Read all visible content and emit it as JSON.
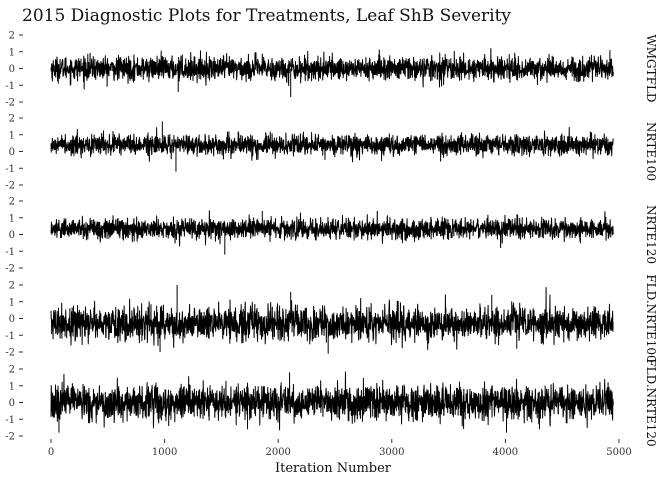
{
  "chart_data": {
    "type": "line",
    "title": "2015 Diagnostic Plots for Treatments, Leaf ShB Severity",
    "xlabel": "Iteration Number",
    "ylabel": "",
    "xlim": [
      0,
      5000
    ],
    "ylim": [
      -2,
      2
    ],
    "x_ticks": [
      0,
      1000,
      2000,
      3000,
      4000,
      5000
    ],
    "y_ticks": [
      2,
      1,
      0,
      -1,
      -2
    ],
    "grid": false,
    "n_iterations": 4950,
    "series": [
      {
        "name": "WMGTFLD",
        "center": 0.0,
        "spread": 0.35,
        "spikes": [
          {
            "x": 1120,
            "y": -1.4
          },
          {
            "x": 2110,
            "y": -1.7
          },
          {
            "x": 4920,
            "y": 1.1
          }
        ]
      },
      {
        "name": "NRTE100",
        "center": 0.4,
        "spread": 0.3,
        "spikes": [
          {
            "x": 980,
            "y": 1.8
          },
          {
            "x": 1100,
            "y": -1.2
          }
        ]
      },
      {
        "name": "NRTE120",
        "center": 0.35,
        "spread": 0.3,
        "spikes": [
          {
            "x": 1530,
            "y": -1.2
          },
          {
            "x": 1860,
            "y": 1.4
          }
        ]
      },
      {
        "name": "FLD.NRTE100",
        "center": -0.3,
        "spread": 0.5,
        "spikes": [
          {
            "x": 1110,
            "y": 2.0
          },
          {
            "x": 960,
            "y": -2.0
          },
          {
            "x": 2110,
            "y": 1.6
          },
          {
            "x": 2440,
            "y": -2.1
          },
          {
            "x": 3880,
            "y": 1.4
          },
          {
            "x": 4100,
            "y": -1.8
          }
        ]
      },
      {
        "name": "FLD.NRTE120",
        "center": 0.0,
        "spread": 0.5,
        "spikes": [
          {
            "x": 2100,
            "y": 1.8
          },
          {
            "x": 70,
            "y": -1.8
          },
          {
            "x": 1730,
            "y": -1.6
          },
          {
            "x": 4010,
            "y": -1.8
          },
          {
            "x": 4300,
            "y": -1.6
          }
        ]
      }
    ]
  }
}
